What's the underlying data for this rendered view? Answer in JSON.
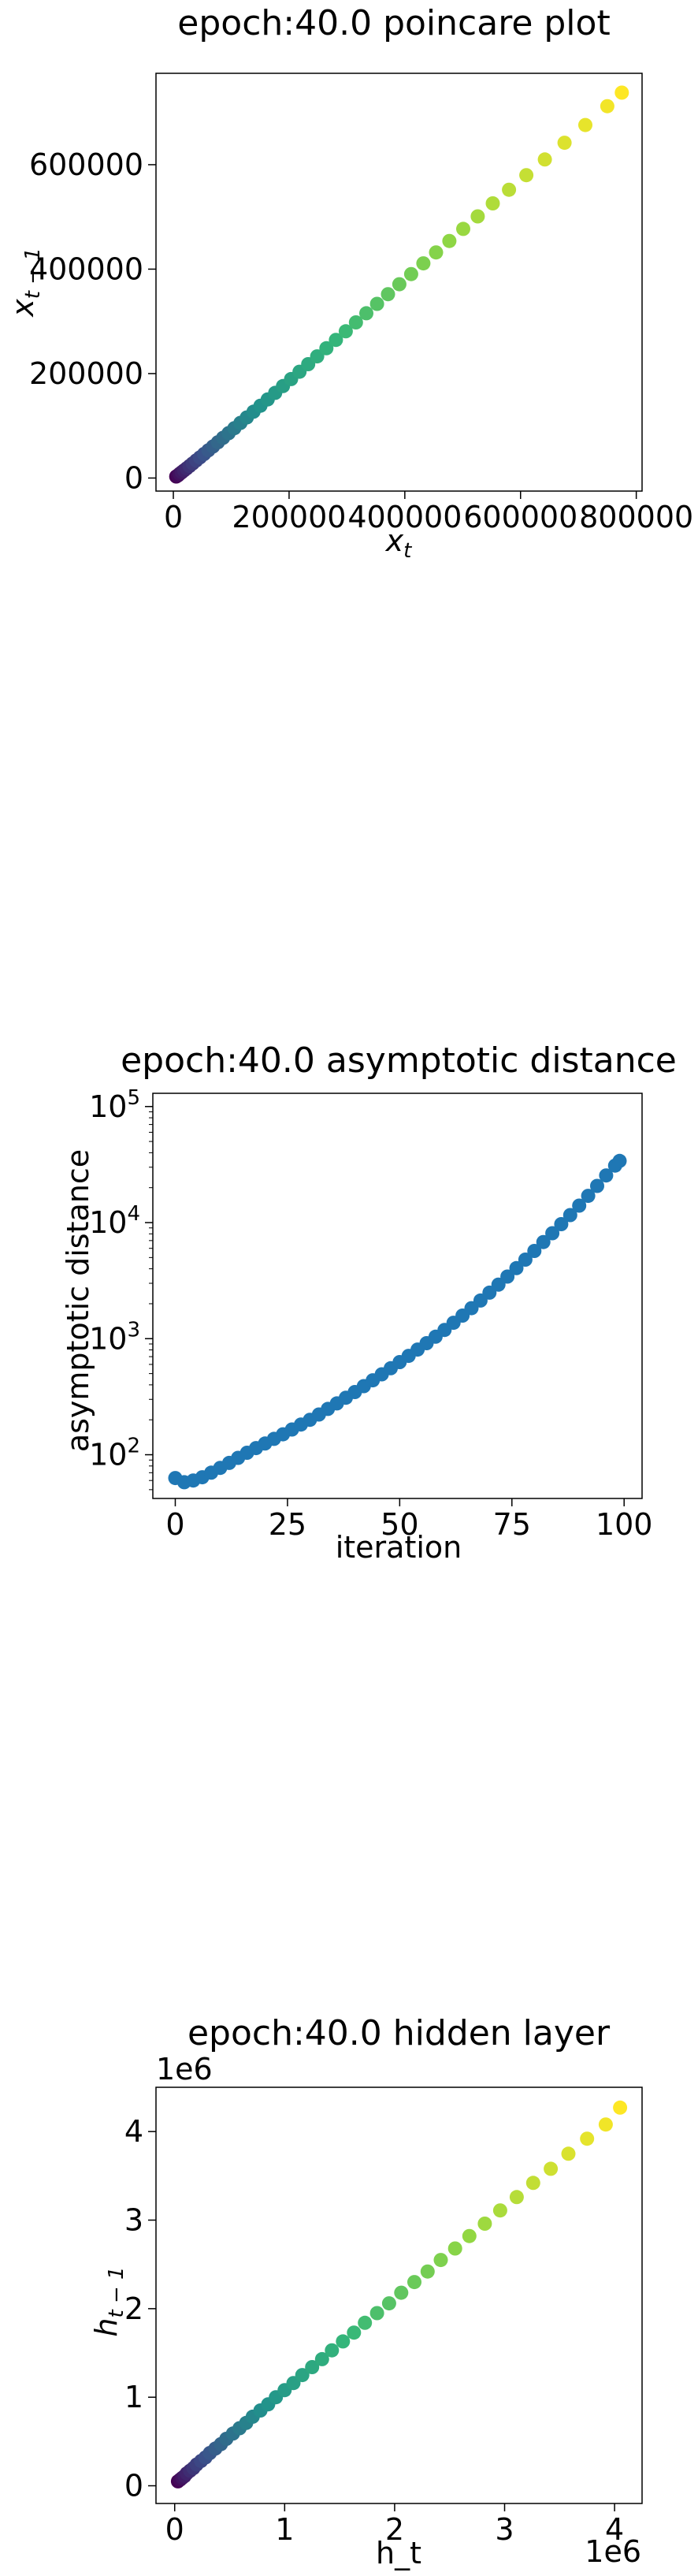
{
  "chart_data": [
    {
      "type": "scatter",
      "title": "epoch:40.0 poincare plot",
      "xlabel": "x",
      "xlabel_sub": "t",
      "ylabel": "x",
      "ylabel_sub": "t − 1",
      "xlim": [
        -30000,
        810000
      ],
      "ylim": [
        -25000,
        775000
      ],
      "xticks": [
        0,
        200000,
        400000,
        600000,
        800000
      ],
      "xtick_labels": [
        "0",
        "200000",
        "400000",
        "600000",
        "800000"
      ],
      "yticks": [
        0,
        200000,
        400000,
        600000
      ],
      "ytick_labels": [
        "0",
        "200000",
        "400000",
        "600000"
      ],
      "colormap": [
        "#440154",
        "#3b528b",
        "#21918c",
        "#35b779",
        "#90d743",
        "#fde725"
      ],
      "series": [
        {
          "x": [
            5000,
            8000,
            11000,
            14500,
            18500,
            23000,
            28000,
            33500,
            39500,
            46000,
            53000,
            60500,
            68500,
            77000,
            86000,
            95500,
            105500,
            116000,
            127000,
            138500,
            150500,
            163000,
            176000,
            189500,
            203500,
            218000,
            233000,
            248500,
            264500,
            281000,
            298000,
            315500,
            333500,
            352000,
            371000,
            390500,
            411000,
            432000,
            454000,
            477000,
            501000,
            526000,
            552000,
            580000,
            610000,
            642000,
            676000,
            712000,
            750000,
            775000
          ],
          "y": [
            3000,
            5000,
            8000,
            11000,
            14500,
            18500,
            23000,
            28000,
            33500,
            39500,
            46000,
            53000,
            60500,
            68500,
            77000,
            86000,
            95500,
            105500,
            116000,
            127000,
            138500,
            150500,
            163000,
            176000,
            189500,
            203500,
            218000,
            233000,
            248500,
            264500,
            281000,
            298000,
            315500,
            333500,
            352000,
            371000,
            390500,
            411000,
            432000,
            454000,
            477000,
            501000,
            526000,
            552000,
            580000,
            610000,
            642000,
            676000,
            712000,
            738000
          ]
        }
      ]
    },
    {
      "type": "scatter",
      "title": "epoch:40.0 asymptotic distance",
      "xlabel": "iteration",
      "ylabel": "asymptotic distance",
      "xscale": "linear",
      "yscale": "log",
      "xlim": [
        -5,
        104
      ],
      "ylim": [
        42,
        130000
      ],
      "xticks": [
        0,
        25,
        50,
        75,
        100
      ],
      "xtick_labels": [
        "0",
        "25",
        "50",
        "75",
        "100"
      ],
      "yticks": [
        100,
        1000,
        10000,
        100000
      ],
      "ytick_base": "10",
      "ytick_exponents": [
        "2",
        "3",
        "4",
        "5"
      ],
      "color": "#1f77b4",
      "series": [
        {
          "x": [
            0,
            2,
            4,
            6,
            8,
            10,
            12,
            14,
            16,
            18,
            20,
            22,
            24,
            26,
            28,
            30,
            32,
            34,
            36,
            38,
            40,
            42,
            44,
            46,
            48,
            50,
            52,
            54,
            56,
            58,
            60,
            62,
            64,
            66,
            68,
            70,
            72,
            74,
            76,
            78,
            80,
            82,
            84,
            86,
            88,
            90,
            92,
            94,
            96,
            98,
            99
          ],
          "y": [
            63,
            58,
            60,
            64,
            70,
            77,
            85,
            94,
            104,
            114,
            125,
            137,
            150,
            165,
            182,
            200,
            222,
            248,
            277,
            310,
            347,
            390,
            438,
            493,
            556,
            628,
            711,
            805,
            915,
            1040,
            1190,
            1370,
            1580,
            1830,
            2130,
            2490,
            2920,
            3430,
            4050,
            4800,
            5700,
            6800,
            8100,
            9700,
            11600,
            14000,
            17000,
            20700,
            25500,
            31000,
            34000
          ]
        }
      ]
    },
    {
      "type": "scatter",
      "title": "epoch:40.0 hidden layer",
      "xlabel": "h_t",
      "ylabel": "h",
      "ylabel_sub": "t − 1",
      "offset_text_x": "1e6",
      "offset_text_y": "1e6",
      "xlim": [
        -0.17,
        4.25
      ],
      "ylim": [
        -0.2,
        4.5
      ],
      "xticks": [
        0,
        1,
        2,
        3,
        4
      ],
      "xtick_labels": [
        "0",
        "1",
        "2",
        "3",
        "4"
      ],
      "yticks": [
        0,
        1,
        2,
        3,
        4
      ],
      "ytick_labels": [
        "0",
        "1",
        "2",
        "3",
        "4"
      ],
      "colormap": [
        "#440154",
        "#3b528b",
        "#21918c",
        "#35b779",
        "#90d743",
        "#fde725"
      ],
      "series": [
        {
          "x": [
            0.03,
            0.05,
            0.07,
            0.09,
            0.11,
            0.14,
            0.17,
            0.2,
            0.24,
            0.28,
            0.32,
            0.37,
            0.42,
            0.47,
            0.53,
            0.59,
            0.65,
            0.71,
            0.78,
            0.85,
            0.92,
            1.0,
            1.08,
            1.16,
            1.25,
            1.34,
            1.43,
            1.53,
            1.63,
            1.73,
            1.84,
            1.95,
            2.06,
            2.18,
            2.3,
            2.42,
            2.55,
            2.68,
            2.82,
            2.96,
            3.11,
            3.26,
            3.42,
            3.58,
            3.75,
            3.92,
            4.05
          ],
          "y": [
            0.05,
            0.07,
            0.09,
            0.11,
            0.14,
            0.17,
            0.2,
            0.24,
            0.28,
            0.32,
            0.37,
            0.42,
            0.47,
            0.53,
            0.59,
            0.65,
            0.71,
            0.78,
            0.85,
            0.92,
            1.0,
            1.08,
            1.16,
            1.25,
            1.34,
            1.43,
            1.53,
            1.63,
            1.73,
            1.84,
            1.95,
            2.06,
            2.18,
            2.3,
            2.42,
            2.55,
            2.68,
            2.82,
            2.96,
            3.11,
            3.26,
            3.42,
            3.58,
            3.75,
            3.92,
            4.08,
            4.27
          ]
        }
      ]
    }
  ]
}
